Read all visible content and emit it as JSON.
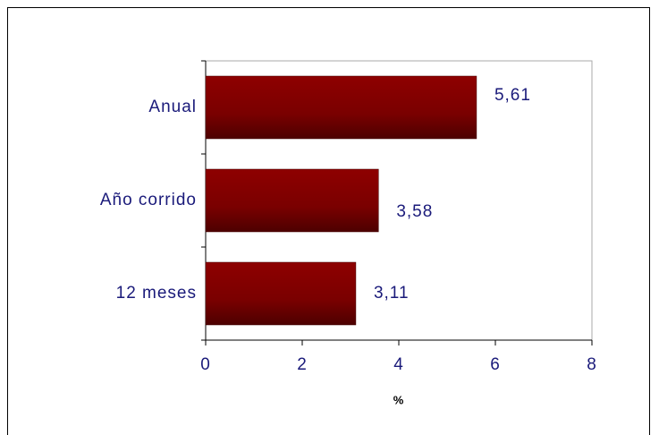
{
  "chart_data": {
    "type": "bar",
    "orientation": "horizontal",
    "categories": [
      "Anual",
      "Año corrido",
      "12 meses"
    ],
    "values": [
      5.61,
      3.58,
      3.11
    ],
    "value_labels": [
      "5,61",
      "3,58",
      "3,11"
    ],
    "color": "#800000",
    "xlabel": "%",
    "xlim": [
      0,
      8
    ],
    "xticks": [
      0,
      2,
      4,
      6,
      8
    ]
  }
}
